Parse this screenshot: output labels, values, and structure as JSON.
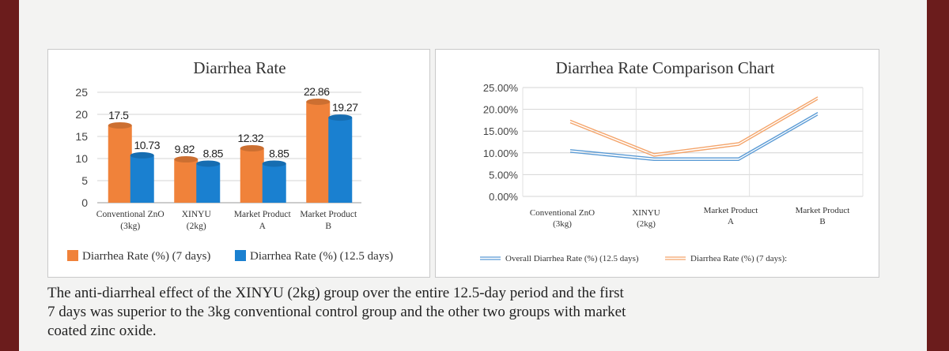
{
  "chart_data": [
    {
      "type": "bar",
      "title": "Diarrhea Rate",
      "categories": [
        [
          "Conventional ZnO",
          "(3kg)"
        ],
        [
          "XINYU",
          "(2kg)"
        ],
        [
          "Market Product",
          "A"
        ],
        [
          "Market Product",
          "B"
        ]
      ],
      "series": [
        {
          "name": "Diarrhea Rate (%) (7 days)",
          "values": [
            17.5,
            9.82,
            12.32,
            22.86
          ],
          "labels": [
            "17.5",
            "9.82",
            "12.32",
            "22.86"
          ],
          "color": "#f0823a"
        },
        {
          "name": "Diarrhea Rate (%) (12.5 days)",
          "values": [
            10.73,
            8.85,
            8.85,
            19.27
          ],
          "labels": [
            "10.73",
            "8.85",
            "8.85",
            "19.27"
          ],
          "color": "#1a80d0"
        }
      ],
      "ylim": [
        0,
        25
      ],
      "yticks": [
        0,
        5,
        10,
        15,
        20,
        25
      ],
      "ytick_labels": [
        "0",
        "5",
        "10",
        "15",
        "20",
        "25"
      ],
      "grid": true,
      "legend": "bottom"
    },
    {
      "type": "line",
      "title": "Diarrhea Rate Comparison Chart",
      "categories": [
        [
          "Conventional ZnO",
          "(3kg)"
        ],
        [
          "XINYU",
          "(2kg)"
        ],
        [
          "Market Product",
          "A"
        ],
        [
          "Market Product",
          "B"
        ]
      ],
      "series": [
        {
          "name": "Overall Diarrhea Rate (%) (12.5 days)",
          "values": [
            10.73,
            8.85,
            8.85,
            19.27
          ],
          "color": "#5b9bd5"
        },
        {
          "name": "Diarrhea Rate (%) (7 days):",
          "values": [
            17.5,
            9.82,
            12.32,
            22.86
          ],
          "color": "#f4a46a"
        }
      ],
      "ylim": [
        0,
        25
      ],
      "yticks": [
        0,
        5,
        10,
        15,
        20,
        25
      ],
      "ytick_labels": [
        "0.00%",
        "5.00%",
        "10.00%",
        "15.00%",
        "20.00%",
        "25.00%"
      ],
      "grid": true,
      "legend": "bottom"
    }
  ],
  "caption": {
    "lines": [
      "The anti-diarrheal effect of the XINYU (2kg) group over the entire 12.5-day period and the first",
      "7 days was superior to the 3kg conventional control group and the other two groups with market",
      "coated zinc oxide."
    ]
  }
}
